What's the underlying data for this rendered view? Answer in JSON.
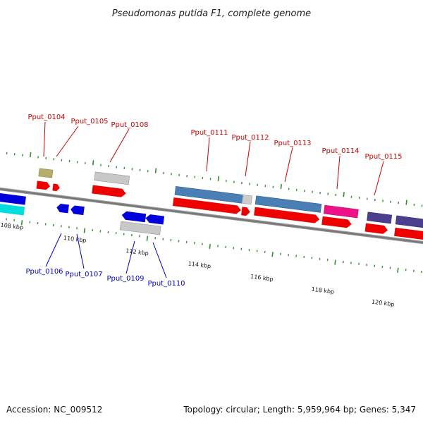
{
  "title": "Pseudomonas putida F1, complete genome",
  "footer": {
    "accession": "Accession: NC_009512",
    "summary": "Topology: circular; Length: 5,959,964 bp; Genes: 5,347"
  },
  "colors": {
    "backbone": "#7a7a7a",
    "tick": "#2f8f2f",
    "label_forward": "#cc0000",
    "label_reverse": "#0000cc",
    "cds_forward": "#ee0000",
    "cds_reverse": "#0000dd",
    "rna": "#00dddd",
    "feature_grey": "#bbbbbb",
    "feature_steel": "#4a7fb5",
    "feature_magenta": "#ee1188",
    "feature_purple": "#4b3f8f",
    "feature_olive": "#b5ad6a"
  },
  "axis_labels": [
    "108 kbp",
    "110 kbp",
    "112 kbp",
    "114 kbp",
    "116 kbp",
    "118 kbp",
    "120 kbp"
  ],
  "gene_labels_top": [
    "Pput_0104",
    "Pput_0105",
    "Pput_0108",
    "Pput_0111",
    "Pput_0112",
    "Pput_0113",
    "Pput_0114",
    "Pput_0115"
  ],
  "gene_labels_bottom": [
    "Pput_0106",
    "Pput_0107",
    "Pput_0109",
    "Pput_0110"
  ]
}
